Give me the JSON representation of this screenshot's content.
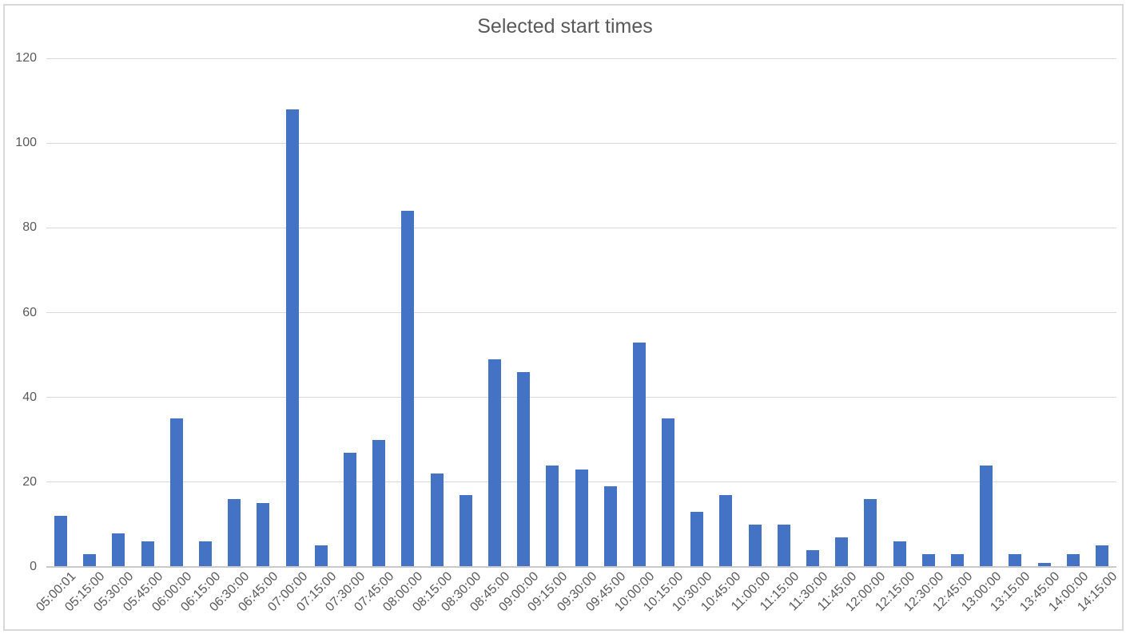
{
  "chart_data": {
    "type": "bar",
    "title": "Selected start times",
    "categories": [
      "05:00:01",
      "05:15:00",
      "05:30:00",
      "05:45:00",
      "06:00:00",
      "06:15:00",
      "06:30:00",
      "06:45:00",
      "07:00:00",
      "07:15:00",
      "07:30:00",
      "07:45:00",
      "08:00:00",
      "08:15:00",
      "08:30:00",
      "08:45:00",
      "09:00:00",
      "09:15:00",
      "09:30:00",
      "09:45:00",
      "10:00:00",
      "10:15:00",
      "10:30:00",
      "10:45:00",
      "11:00:00",
      "11:15:00",
      "11:30:00",
      "11:45:00",
      "12:00:00",
      "12:15:00",
      "12:30:00",
      "12:45:00",
      "13:00:00",
      "13:15:00",
      "13:45:00",
      "14:00:00",
      "14:15:00"
    ],
    "values": [
      12,
      3,
      8,
      6,
      35,
      6,
      16,
      15,
      108,
      5,
      27,
      30,
      84,
      22,
      17,
      49,
      46,
      24,
      23,
      19,
      53,
      35,
      13,
      17,
      10,
      10,
      4,
      7,
      16,
      6,
      3,
      3,
      24,
      3,
      1,
      3,
      5
    ],
    "xlabel": "",
    "ylabel": "",
    "ylim": [
      0,
      120
    ],
    "yticks": [
      0,
      20,
      40,
      60,
      80,
      100,
      120
    ],
    "grid": "horizontal",
    "legend": "none",
    "colors": {
      "bar": "#4472c4",
      "gridline": "#d9d9d9",
      "axis_line": "#c9c9c9",
      "tick_label": "#595959",
      "title": "#595959",
      "frame_border": "#d9d9d9",
      "background": "#ffffff"
    }
  }
}
